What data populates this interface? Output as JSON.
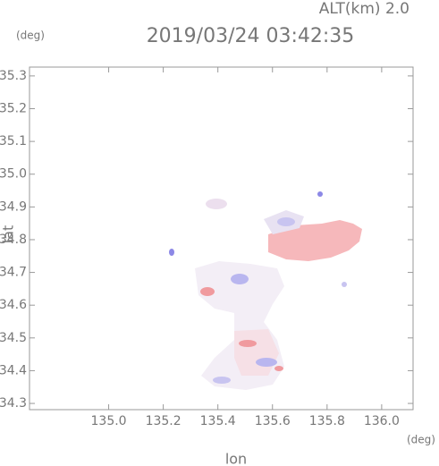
{
  "chart_data": {
    "type": "map",
    "title": "2019/03/24 03:42:35",
    "subtitle": "ALT(km) 2.0",
    "y_unit": "(deg)",
    "x_unit": "(deg)",
    "x_label": "lon",
    "y_label": "lat",
    "xlim": [
      134.71,
      136.115
    ],
    "ylim": [
      34.281,
      35.327
    ],
    "xticks": [
      {
        "value": 135.0,
        "label": "135.0"
      },
      135.2,
      135.4,
      135.6,
      135.8,
      {
        "value": 136.0,
        "label": "136.0"
      }
    ],
    "yticks": [
      34.3,
      34.4,
      34.5,
      34.6,
      34.7,
      34.8,
      34.9,
      {
        "value": 35.0,
        "label": "35.0"
      },
      35.1,
      35.2,
      35.3
    ]
  }
}
